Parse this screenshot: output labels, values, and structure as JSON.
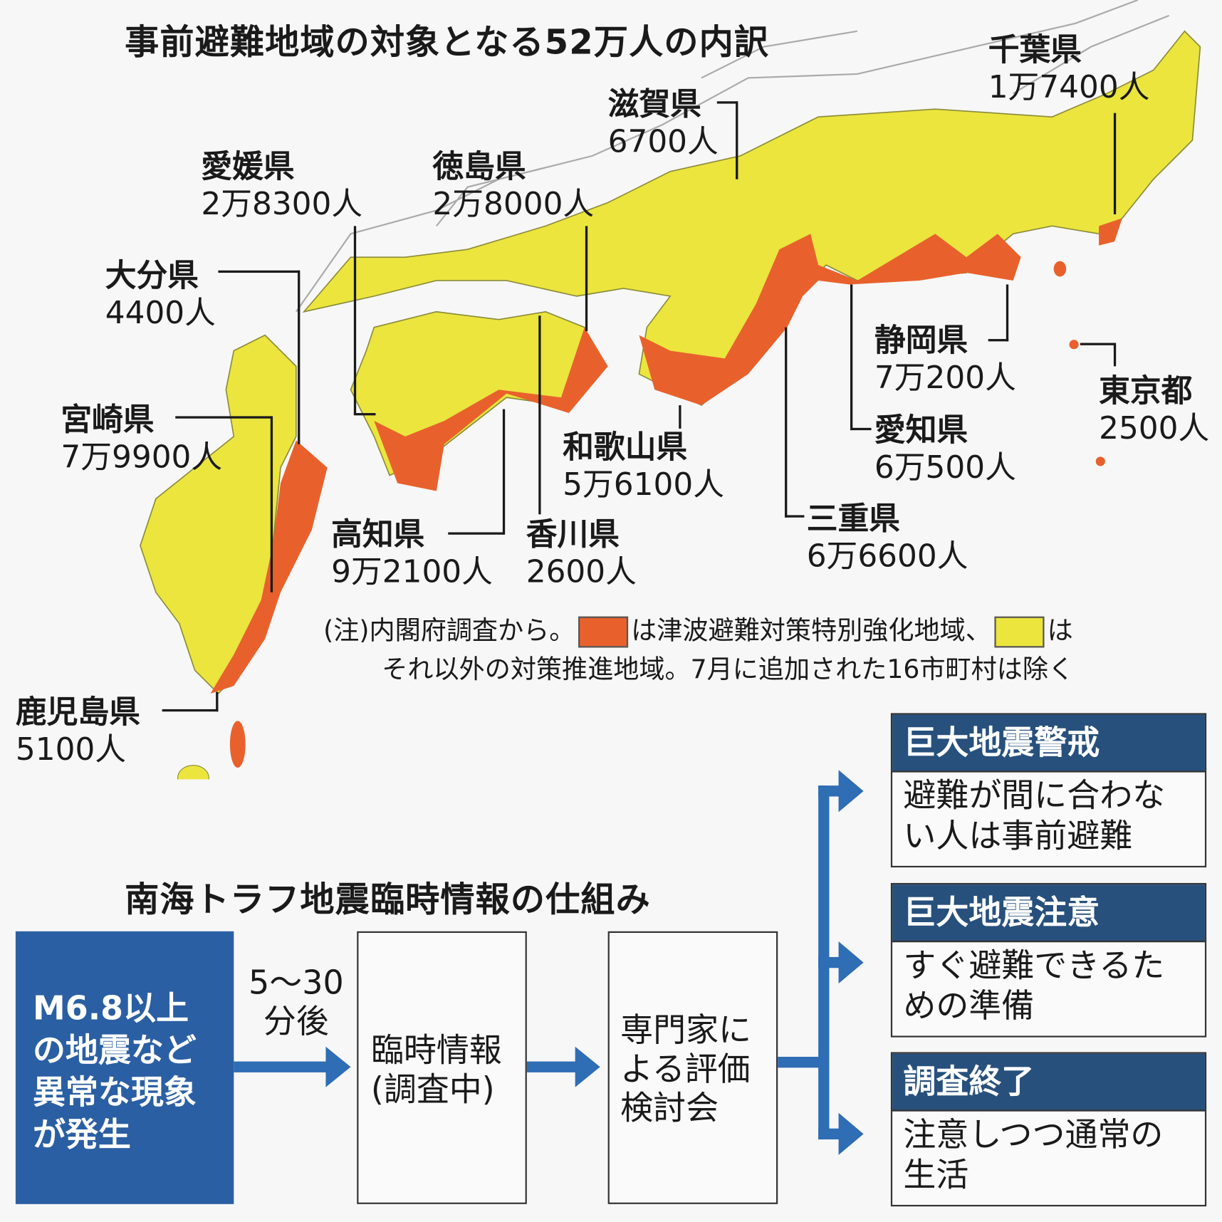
{
  "map": {
    "title": "事前避難地域の対象となる52万人の内訳",
    "colors": {
      "special_zone": "#e8612c",
      "promotion_zone": "#ebe53e",
      "land_other": "#ffffff",
      "border": "#8a8a8a"
    },
    "prefectures": [
      {
        "name": "千葉県",
        "count": "1万7400人"
      },
      {
        "name": "滋賀県",
        "count": "6700人"
      },
      {
        "name": "愛媛県",
        "count": "2万8300人"
      },
      {
        "name": "徳島県",
        "count": "2万8000人"
      },
      {
        "name": "大分県",
        "count": "4400人"
      },
      {
        "name": "宮崎県",
        "count": "7万9900人"
      },
      {
        "name": "鹿児島県",
        "count": "5100人"
      },
      {
        "name": "高知県",
        "count": "9万2100人"
      },
      {
        "name": "香川県",
        "count": "2600人"
      },
      {
        "name": "和歌山県",
        "count": "5万6100人"
      },
      {
        "name": "三重県",
        "count": "6万6600人"
      },
      {
        "name": "静岡県",
        "count": "7万200人"
      },
      {
        "name": "愛知県",
        "count": "6万500人"
      },
      {
        "name": "東京都",
        "count": "2500人"
      }
    ],
    "note": {
      "part1": "(注)内閣府調査から。",
      "part2": "は津波避難対策特別強化地域、",
      "part3": "は",
      "line2": "それ以外の対策推進地域。7月に追加された16市町村は除く"
    }
  },
  "flow": {
    "title": "南海トラフ地震臨時情報の仕組み",
    "trigger": [
      "M6.8以上",
      "の地震など",
      "異常な現象",
      "が発生"
    ],
    "delay": [
      "5〜30",
      "分後"
    ],
    "step2": [
      "臨時情報",
      "(調査中)"
    ],
    "step3": [
      "専門家に",
      "よる評価",
      "検討会"
    ],
    "outcomes": [
      {
        "header": "巨大地震警戒",
        "body": [
          "避難が間に合わな",
          "い人は事前避難"
        ]
      },
      {
        "header": "巨大地震注意",
        "body": [
          "すぐ避難できるた",
          "めの準備"
        ]
      },
      {
        "header": "調査終了",
        "body": [
          "注意しつつ通常の",
          "生活"
        ]
      }
    ],
    "colors": {
      "trigger": "#2b5fa3",
      "arrow": "#2f6db5",
      "header": "#27507c"
    }
  }
}
